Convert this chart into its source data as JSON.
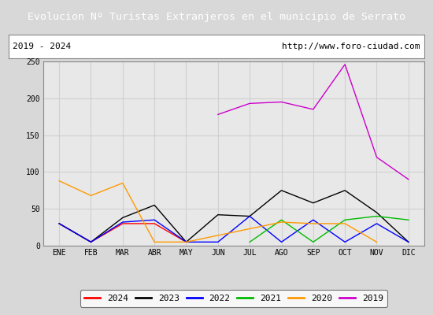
{
  "title": "Evolucion Nº Turistas Extranjeros en el municipio de Serrato",
  "subtitle_left": "2019 - 2024",
  "subtitle_right": "http://www.foro-ciudad.com",
  "title_bg_color": "#4472c4",
  "title_text_color": "#ffffff",
  "months": [
    "ENE",
    "FEB",
    "MAR",
    "ABR",
    "MAY",
    "JUN",
    "JUL",
    "AGO",
    "SEP",
    "OCT",
    "NOV",
    "DIC"
  ],
  "ylim": [
    0,
    250
  ],
  "yticks": [
    0,
    50,
    100,
    150,
    200,
    250
  ],
  "series": {
    "2024": {
      "color": "#ff0000",
      "data": [
        30,
        5,
        30,
        30,
        5,
        null,
        null,
        null,
        null,
        null,
        null,
        null
      ]
    },
    "2023": {
      "color": "#000000",
      "data": [
        30,
        5,
        38,
        55,
        5,
        42,
        40,
        75,
        58,
        75,
        45,
        5
      ]
    },
    "2022": {
      "color": "#0000ff",
      "data": [
        30,
        5,
        32,
        35,
        5,
        5,
        40,
        5,
        35,
        5,
        30,
        5
      ]
    },
    "2021": {
      "color": "#00bb00",
      "data": [
        null,
        null,
        null,
        null,
        null,
        null,
        5,
        35,
        5,
        35,
        40,
        35
      ]
    },
    "2020": {
      "color": "#ff9900",
      "data": [
        88,
        68,
        85,
        5,
        5,
        null,
        null,
        32,
        30,
        30,
        5,
        null
      ]
    },
    "2019": {
      "color": "#cc00cc",
      "data": [
        null,
        null,
        null,
        null,
        null,
        178,
        193,
        195,
        185,
        246,
        120,
        90
      ]
    }
  },
  "legend_order": [
    "2024",
    "2023",
    "2022",
    "2021",
    "2020",
    "2019"
  ],
  "grid_color": "#d0d0d0",
  "outer_bg_color": "#d8d8d8",
  "inner_bg_color": "#e8e8e8",
  "plot_bg_color": "#e8e8e8"
}
